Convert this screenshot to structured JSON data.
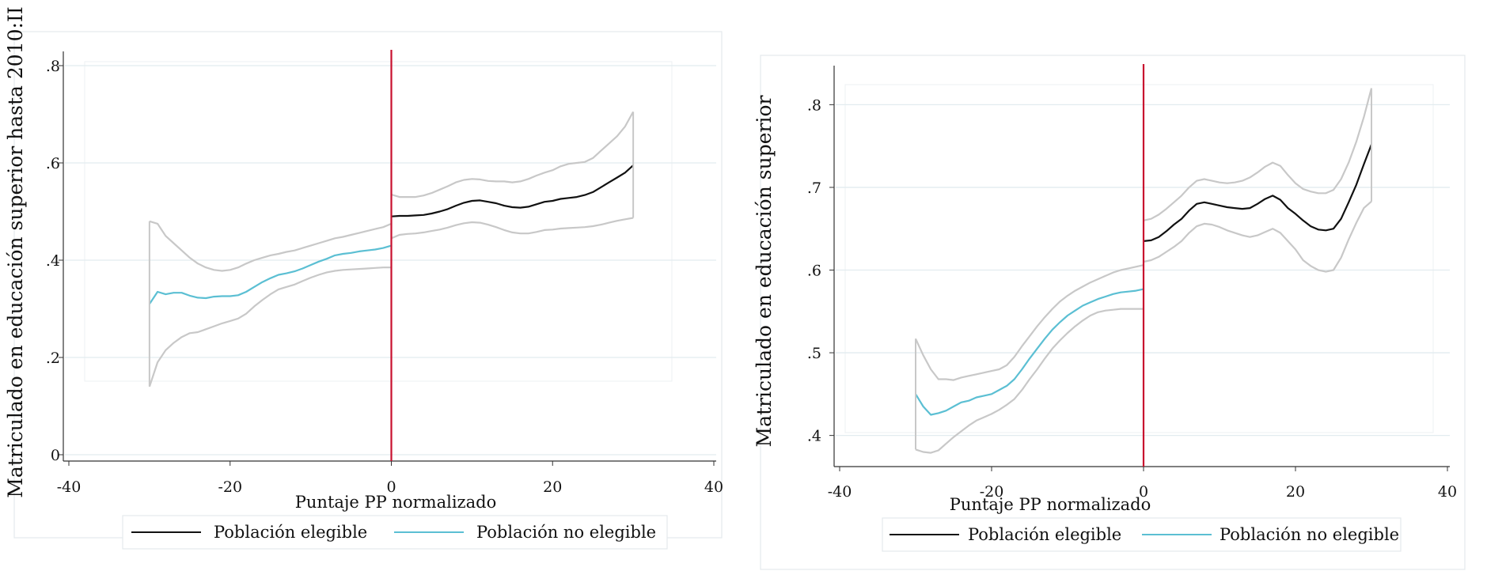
{
  "colors": {
    "eligible": "#111111",
    "non_eligible": "#5bbfd3",
    "ci": "#c8c8c8",
    "cutoff": "#c8102e",
    "grid": "#e2ecef",
    "frame": "#e4e9ec",
    "axis": "#333333"
  },
  "chart_data": [
    {
      "type": "line",
      "ylabel": "Matriculado en educación superior hasta 2010:II",
      "xlabel": "Puntaje PP normalizado",
      "xlim": [
        -40,
        40
      ],
      "ylim": [
        0,
        0.8
      ],
      "x_ticks": [
        -40,
        -20,
        0,
        20,
        40
      ],
      "x_tick_labels": [
        "-40",
        "-20",
        "0",
        "20",
        "40"
      ],
      "y_ticks": [
        0,
        0.2,
        0.4,
        0.6,
        0.8
      ],
      "y_tick_labels": [
        "0",
        ".2",
        ".4",
        ".6",
        ".8"
      ],
      "grid": true,
      "cutoff_x": 0,
      "legend": {
        "position": "bottom",
        "entries": [
          "Población elegible",
          "Población no elegible"
        ]
      },
      "series": [
        {
          "name": "Población no elegible",
          "role": "estimate",
          "x": [
            -30,
            -29,
            -28,
            -27,
            -26,
            -25,
            -24,
            -23,
            -22,
            -21,
            -20,
            -19,
            -18,
            -17,
            -16,
            -15,
            -14,
            -13,
            -12,
            -11,
            -10,
            -9,
            -8,
            -7,
            -6,
            -5,
            -4,
            -3,
            -2,
            -1,
            0
          ],
          "y": [
            0.31,
            0.335,
            0.33,
            0.333,
            0.333,
            0.327,
            0.323,
            0.322,
            0.325,
            0.326,
            0.326,
            0.328,
            0.335,
            0.345,
            0.355,
            0.363,
            0.37,
            0.373,
            0.377,
            0.383,
            0.39,
            0.397,
            0.403,
            0.41,
            0.413,
            0.415,
            0.418,
            0.42,
            0.422,
            0.425,
            0.43
          ]
        },
        {
          "name": "Población elegible",
          "role": "estimate",
          "x": [
            0,
            1,
            2,
            3,
            4,
            5,
            6,
            7,
            8,
            9,
            10,
            11,
            12,
            13,
            14,
            15,
            16,
            17,
            18,
            19,
            20,
            21,
            22,
            23,
            24,
            25,
            26,
            27,
            28,
            29,
            30
          ],
          "y": [
            0.49,
            0.491,
            0.491,
            0.492,
            0.493,
            0.496,
            0.5,
            0.505,
            0.512,
            0.518,
            0.522,
            0.523,
            0.52,
            0.517,
            0.512,
            0.509,
            0.508,
            0.51,
            0.515,
            0.52,
            0.522,
            0.526,
            0.528,
            0.53,
            0.534,
            0.54,
            0.55,
            0.56,
            0.57,
            0.58,
            0.595
          ]
        },
        {
          "role": "ci_upper",
          "x": [
            -30,
            -29,
            -28,
            -27,
            -26,
            -25,
            -24,
            -23,
            -22,
            -21,
            -20,
            -19,
            -18,
            -17,
            -16,
            -15,
            -14,
            -13,
            -12,
            -11,
            -10,
            -9,
            -8,
            -7,
            -6,
            -5,
            -4,
            -3,
            -2,
            -1,
            0
          ],
          "y": [
            0.48,
            0.475,
            0.45,
            0.435,
            0.42,
            0.405,
            0.393,
            0.385,
            0.38,
            0.378,
            0.38,
            0.385,
            0.393,
            0.4,
            0.405,
            0.41,
            0.413,
            0.417,
            0.42,
            0.425,
            0.43,
            0.435,
            0.44,
            0.445,
            0.448,
            0.452,
            0.456,
            0.46,
            0.464,
            0.468,
            0.475
          ]
        },
        {
          "role": "ci_lower",
          "x": [
            -30,
            -29,
            -28,
            -27,
            -26,
            -25,
            -24,
            -23,
            -22,
            -21,
            -20,
            -19,
            -18,
            -17,
            -16,
            -15,
            -14,
            -13,
            -12,
            -11,
            -10,
            -9,
            -8,
            -7,
            -6,
            -5,
            -4,
            -3,
            -2,
            -1,
            0
          ],
          "y": [
            0.14,
            0.19,
            0.215,
            0.23,
            0.242,
            0.25,
            0.252,
            0.258,
            0.264,
            0.27,
            0.275,
            0.28,
            0.29,
            0.305,
            0.318,
            0.33,
            0.34,
            0.345,
            0.35,
            0.357,
            0.364,
            0.37,
            0.375,
            0.378,
            0.38,
            0.381,
            0.382,
            0.383,
            0.384,
            0.385,
            0.385
          ]
        },
        {
          "role": "ci_upper",
          "x": [
            0,
            1,
            2,
            3,
            4,
            5,
            6,
            7,
            8,
            9,
            10,
            11,
            12,
            13,
            14,
            15,
            16,
            17,
            18,
            19,
            20,
            21,
            22,
            23,
            24,
            25,
            26,
            27,
            28,
            29,
            30
          ],
          "y": [
            0.535,
            0.53,
            0.53,
            0.53,
            0.533,
            0.538,
            0.545,
            0.552,
            0.56,
            0.565,
            0.567,
            0.566,
            0.563,
            0.562,
            0.562,
            0.56,
            0.562,
            0.567,
            0.574,
            0.58,
            0.585,
            0.593,
            0.598,
            0.6,
            0.602,
            0.61,
            0.625,
            0.64,
            0.655,
            0.675,
            0.705
          ]
        },
        {
          "role": "ci_lower",
          "x": [
            0,
            1,
            2,
            3,
            4,
            5,
            6,
            7,
            8,
            9,
            10,
            11,
            12,
            13,
            14,
            15,
            16,
            17,
            18,
            19,
            20,
            21,
            22,
            23,
            24,
            25,
            26,
            27,
            28,
            29,
            30
          ],
          "y": [
            0.445,
            0.452,
            0.454,
            0.455,
            0.457,
            0.46,
            0.463,
            0.467,
            0.472,
            0.476,
            0.478,
            0.477,
            0.473,
            0.468,
            0.462,
            0.457,
            0.455,
            0.455,
            0.458,
            0.462,
            0.463,
            0.465,
            0.466,
            0.467,
            0.468,
            0.47,
            0.473,
            0.477,
            0.481,
            0.484,
            0.487
          ]
        }
      ]
    },
    {
      "type": "line",
      "ylabel": "Matriculado en educación superior",
      "xlabel": "Puntaje PP normalizado",
      "xlim": [
        -40,
        40
      ],
      "ylim": [
        0.37,
        0.83
      ],
      "x_ticks": [
        -40,
        -20,
        0,
        20,
        40
      ],
      "x_tick_labels": [
        "-40",
        "-20",
        "0",
        "20",
        "40"
      ],
      "y_ticks": [
        0.4,
        0.5,
        0.6,
        0.7,
        0.8
      ],
      "y_tick_labels": [
        ".4",
        ".5",
        ".6",
        ".7",
        ".8"
      ],
      "grid": true,
      "cutoff_x": 0,
      "legend": {
        "position": "bottom",
        "entries": [
          "Población elegible",
          "Población no elegible"
        ]
      },
      "series": [
        {
          "name": "Población no elegible",
          "role": "estimate",
          "x": [
            -30,
            -29,
            -28,
            -27,
            -26,
            -25,
            -24,
            -23,
            -22,
            -21,
            -20,
            -19,
            -18,
            -17,
            -16,
            -15,
            -14,
            -13,
            -12,
            -11,
            -10,
            -9,
            -8,
            -7,
            -6,
            -5,
            -4,
            -3,
            -2,
            -1,
            0
          ],
          "y": [
            0.45,
            0.435,
            0.425,
            0.427,
            0.43,
            0.435,
            0.44,
            0.442,
            0.446,
            0.448,
            0.45,
            0.455,
            0.46,
            0.468,
            0.48,
            0.493,
            0.505,
            0.517,
            0.528,
            0.537,
            0.545,
            0.551,
            0.557,
            0.561,
            0.565,
            0.568,
            0.571,
            0.573,
            0.574,
            0.575,
            0.577
          ]
        },
        {
          "name": "Población elegible",
          "role": "estimate",
          "x": [
            0,
            1,
            2,
            3,
            4,
            5,
            6,
            7,
            8,
            9,
            10,
            11,
            12,
            13,
            14,
            15,
            16,
            17,
            18,
            19,
            20,
            21,
            22,
            23,
            24,
            25,
            26,
            27,
            28,
            29,
            30
          ],
          "y": [
            0.635,
            0.636,
            0.64,
            0.647,
            0.655,
            0.662,
            0.672,
            0.68,
            0.682,
            0.68,
            0.678,
            0.676,
            0.675,
            0.674,
            0.675,
            0.68,
            0.686,
            0.69,
            0.685,
            0.675,
            0.668,
            0.66,
            0.653,
            0.649,
            0.648,
            0.65,
            0.662,
            0.682,
            0.703,
            0.728,
            0.752
          ]
        },
        {
          "role": "ci_upper",
          "x": [
            -30,
            -29,
            -28,
            -27,
            -26,
            -25,
            -24,
            -23,
            -22,
            -21,
            -20,
            -19,
            -18,
            -17,
            -16,
            -15,
            -14,
            -13,
            -12,
            -11,
            -10,
            -9,
            -8,
            -7,
            -6,
            -5,
            -4,
            -3,
            -2,
            -1,
            0
          ],
          "y": [
            0.517,
            0.497,
            0.48,
            0.468,
            0.468,
            0.467,
            0.47,
            0.472,
            0.474,
            0.476,
            0.478,
            0.48,
            0.485,
            0.495,
            0.508,
            0.52,
            0.532,
            0.543,
            0.553,
            0.562,
            0.569,
            0.575,
            0.58,
            0.585,
            0.589,
            0.593,
            0.597,
            0.6,
            0.602,
            0.604,
            0.606
          ]
        },
        {
          "role": "ci_lower",
          "x": [
            -30,
            -29,
            -28,
            -27,
            -26,
            -25,
            -24,
            -23,
            -22,
            -21,
            -20,
            -19,
            -18,
            -17,
            -16,
            -15,
            -14,
            -13,
            -12,
            -11,
            -10,
            -9,
            -8,
            -7,
            -6,
            -5,
            -4,
            -3,
            -2,
            -1,
            0
          ],
          "y": [
            0.383,
            0.38,
            0.379,
            0.382,
            0.39,
            0.398,
            0.405,
            0.412,
            0.418,
            0.422,
            0.426,
            0.431,
            0.437,
            0.444,
            0.455,
            0.468,
            0.48,
            0.493,
            0.505,
            0.515,
            0.524,
            0.532,
            0.539,
            0.545,
            0.549,
            0.551,
            0.552,
            0.553,
            0.553,
            0.553,
            0.553
          ]
        },
        {
          "role": "ci_upper",
          "x": [
            0,
            1,
            2,
            3,
            4,
            5,
            6,
            7,
            8,
            9,
            10,
            11,
            12,
            13,
            14,
            15,
            16,
            17,
            18,
            19,
            20,
            21,
            22,
            23,
            24,
            25,
            26,
            27,
            28,
            29,
            30
          ],
          "y": [
            0.66,
            0.662,
            0.667,
            0.674,
            0.682,
            0.69,
            0.7,
            0.708,
            0.71,
            0.708,
            0.706,
            0.705,
            0.706,
            0.708,
            0.712,
            0.718,
            0.725,
            0.73,
            0.726,
            0.715,
            0.705,
            0.698,
            0.695,
            0.693,
            0.693,
            0.697,
            0.71,
            0.73,
            0.755,
            0.785,
            0.82
          ]
        },
        {
          "role": "ci_lower",
          "x": [
            0,
            1,
            2,
            3,
            4,
            5,
            6,
            7,
            8,
            9,
            10,
            11,
            12,
            13,
            14,
            15,
            16,
            17,
            18,
            19,
            20,
            21,
            22,
            23,
            24,
            25,
            26,
            27,
            28,
            29,
            30
          ],
          "y": [
            0.61,
            0.612,
            0.616,
            0.622,
            0.628,
            0.635,
            0.645,
            0.653,
            0.656,
            0.655,
            0.652,
            0.648,
            0.645,
            0.642,
            0.64,
            0.642,
            0.646,
            0.65,
            0.645,
            0.635,
            0.625,
            0.612,
            0.605,
            0.6,
            0.598,
            0.6,
            0.615,
            0.637,
            0.657,
            0.675,
            0.683
          ]
        }
      ]
    }
  ]
}
